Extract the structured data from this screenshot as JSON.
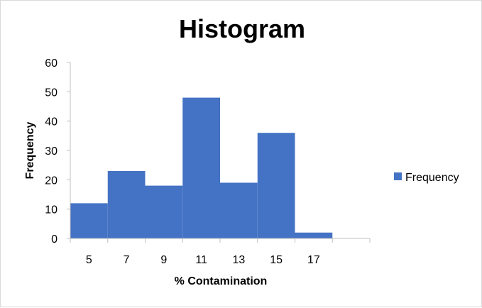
{
  "chart_data": {
    "type": "bar",
    "title": "Histogram",
    "xlabel": "% Contamination",
    "ylabel": "Frequency",
    "categories": [
      "5",
      "7",
      "9",
      "11",
      "13",
      "15",
      "17",
      ""
    ],
    "series": [
      {
        "name": "Frequency",
        "values": [
          12,
          23,
          18,
          48,
          19,
          36,
          2,
          0
        ]
      }
    ],
    "ylim": [
      0,
      60
    ],
    "yticks": [
      "0",
      "10",
      "20",
      "30",
      "40",
      "50",
      "60"
    ],
    "grid": false,
    "bar_gap": 0,
    "legend": "right",
    "colors": {
      "bar": "#4472c4",
      "axis": "#bfbfbf"
    }
  }
}
